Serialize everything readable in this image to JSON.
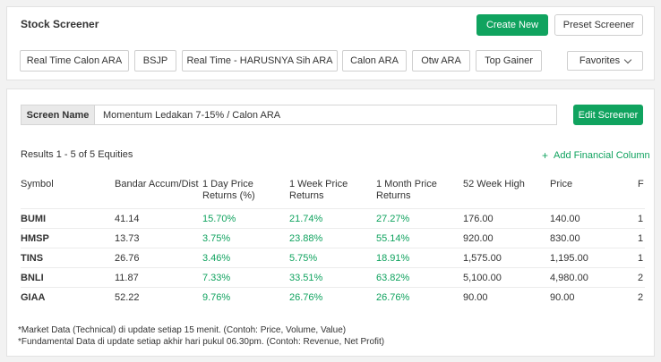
{
  "header": {
    "title": "Stock Screener",
    "create_new": "Create New",
    "preset_screener": "Preset Screener",
    "favorites": "Favorites"
  },
  "presets": [
    "Real Time Calon ARA",
    "BSJP",
    "Real Time - HARUSNYA Sih ARA",
    "Calon ARA",
    "Otw ARA",
    "Top Gainer"
  ],
  "screen": {
    "label": "Screen Name",
    "value": "Momentum Ledakan 7-15% / Calon ARA",
    "edit": "Edit Screener"
  },
  "results": "Results 1 - 5 of 5 Equities",
  "add_column": "Add Financial Column",
  "table": {
    "headers": [
      "Symbol",
      "Bandar Accum/Dist",
      "1 Day Price Returns (%)",
      "1 Week Price Returns",
      "1 Month Price Returns",
      "52 Week High",
      "Price",
      "F"
    ],
    "rows": [
      [
        "BUMI",
        "41.14",
        "15.70%",
        "21.74%",
        "27.27%",
        "176.00",
        "140.00",
        "1"
      ],
      [
        "HMSP",
        "13.73",
        "3.75%",
        "23.88%",
        "55.14%",
        "920.00",
        "830.00",
        "1"
      ],
      [
        "TINS",
        "26.76",
        "3.46%",
        "5.75%",
        "18.91%",
        "1,575.00",
        "1,195.00",
        "1"
      ],
      [
        "BNLI",
        "11.87",
        "7.33%",
        "33.51%",
        "63.82%",
        "5,100.00",
        "4,980.00",
        "2"
      ],
      [
        "GIAA",
        "52.22",
        "9.76%",
        "26.76%",
        "26.76%",
        "90.00",
        "90.00",
        "2"
      ]
    ]
  },
  "notes": [
    "*Market Data (Technical) di update setiap 15 menit. (Contoh: Price, Volume, Value)",
    "*Fundamental Data di update setiap akhir hari pukul 06.30pm. (Contoh: Revenue, Net Profit)"
  ],
  "colors": {
    "accent": "#10a35f"
  }
}
